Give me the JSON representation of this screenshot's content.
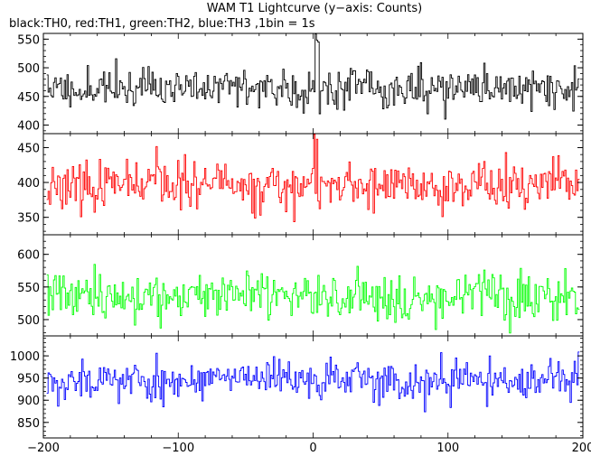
{
  "title": "WAM T1 Lightcurve (y−axis: Counts)",
  "subtitle": "black:TH0, red:TH1, green:TH2, blue:TH3 ,1bin = 1s",
  "chart_data": {
    "type": "line",
    "x_range": [
      -200,
      200
    ],
    "x_ticks": [
      -200,
      -100,
      0,
      100,
      200
    ],
    "x_tick_labels": [
      "−200",
      "−100",
      "0",
      "100",
      "200"
    ],
    "bin_size_s": 1,
    "panels": [
      {
        "name": "TH0",
        "color": "#000000",
        "ylim": [
          385,
          560
        ],
        "yticks": [
          400,
          450,
          500,
          550
        ],
        "mean": 465,
        "sd": 24,
        "seed": 11,
        "spikes": [
          {
            "x": 2,
            "value": 560
          },
          {
            "x": 4,
            "value": 545
          },
          {
            "x": 3,
            "value": 548
          }
        ]
      },
      {
        "name": "TH1",
        "color": "#ff0000",
        "ylim": [
          325,
          470
        ],
        "yticks": [
          350,
          400,
          450
        ],
        "mean": 395,
        "sd": 22,
        "seed": 23,
        "spikes": [
          {
            "x": 1,
            "value": 470
          },
          {
            "x": 3,
            "value": 462
          }
        ]
      },
      {
        "name": "TH2",
        "color": "#00ff00",
        "ylim": [
          475,
          630
        ],
        "yticks": [
          500,
          550,
          600
        ],
        "mean": 537,
        "sd": 24,
        "seed": 37,
        "spikes": []
      },
      {
        "name": "TH3",
        "color": "#0000ff",
        "ylim": [
          815,
          1045
        ],
        "yticks": [
          850,
          900,
          950,
          1000
        ],
        "mean": 945,
        "sd": 30,
        "seed": 53,
        "spikes": []
      }
    ]
  }
}
